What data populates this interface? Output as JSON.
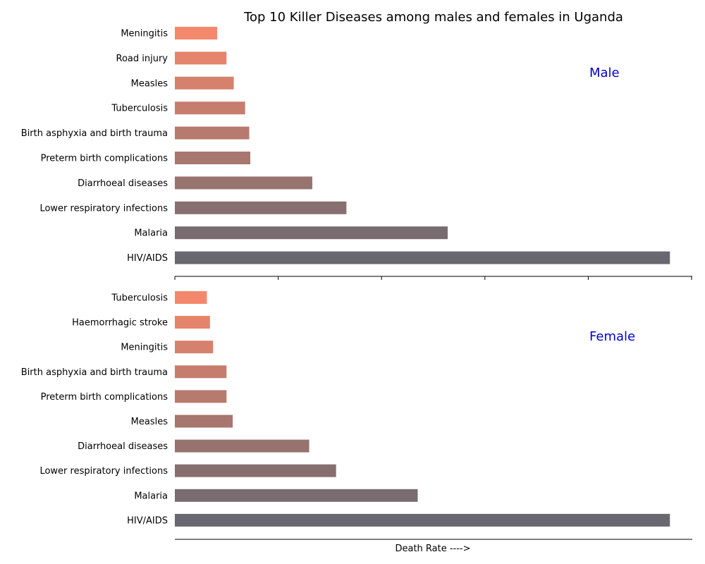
{
  "chart_data": {
    "type": "bar",
    "orientation": "horizontal",
    "title": "Top 10 Killer Diseases among males and females in Uganda",
    "xlabel": "Death Rate ---->",
    "label_color": "#0000cc",
    "color_gradient": [
      "#f4886c",
      "#696870"
    ],
    "panels": [
      {
        "label": "Male",
        "categories": [
          "Meningitis",
          "Road injury",
          "Measles",
          "Tuberculosis",
          "Birth asphyxia and birth trauma",
          "Preterm birth complications",
          "Diarrhoeal diseases",
          "Lower respiratory infections",
          "Malaria",
          "HIV/AIDS"
        ],
        "values": [
          4.1,
          5.0,
          5.7,
          6.8,
          7.2,
          7.3,
          13.3,
          16.6,
          26.4,
          47.9
        ],
        "xlim": [
          0,
          50
        ]
      },
      {
        "label": "Female",
        "categories": [
          "Tuberculosis",
          "Haemorrhagic stroke",
          "Meningitis",
          "Birth asphyxia and birth trauma",
          "Preterm birth complications",
          "Measles",
          "Diarrhoeal diseases",
          "Lower respiratory infections",
          "Malaria",
          "HIV/AIDS"
        ],
        "values": [
          3.1,
          3.4,
          3.7,
          5.0,
          5.0,
          5.6,
          13.0,
          15.6,
          23.5,
          47.9
        ],
        "xlim": [
          0,
          50
        ]
      }
    ]
  }
}
